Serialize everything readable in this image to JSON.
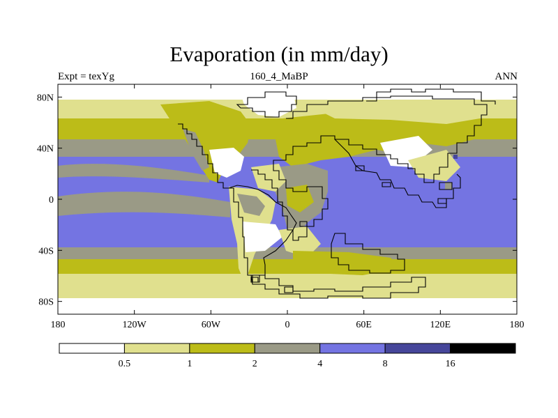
{
  "title": "Evaporation (in mm/day)",
  "subtitle": "160_4_MaBP",
  "left_label": "Expt = texYg",
  "right_label": "ANN",
  "colors": {
    "c0": "#ffffff",
    "c1": "#e0e08e",
    "c2": "#bcbc18",
    "c3": "#9a9a86",
    "c4": "#7474e2",
    "c5": "#46469a",
    "c6": "#000000"
  },
  "map": {
    "lon_range": [
      -180,
      180
    ],
    "lat_range": [
      -90,
      90
    ],
    "x_ticks": [
      "180",
      "120W",
      "60W",
      "0",
      "60E",
      "120E",
      "180"
    ],
    "y_ticks": [
      "80N",
      "40N",
      "0",
      "40S",
      "80S"
    ]
  },
  "colorbar": {
    "boundaries": [
      "0.5",
      "1",
      "2",
      "4",
      "8",
      "16"
    ]
  }
}
